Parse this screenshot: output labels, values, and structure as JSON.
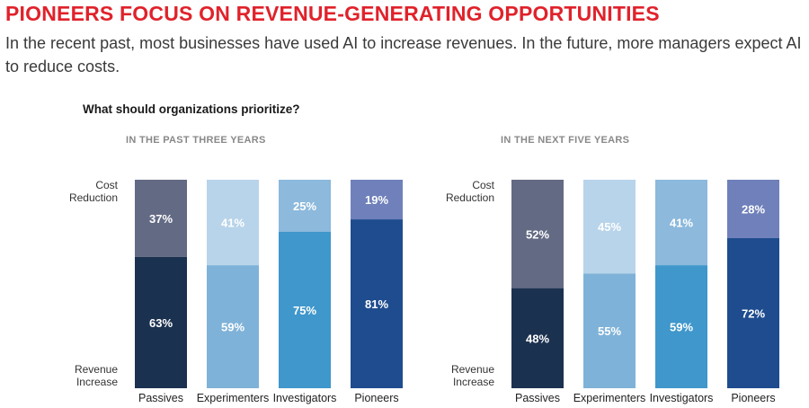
{
  "header": {
    "title": "PIONEERS FOCUS ON REVENUE-GENERATING OPPORTUNITIES",
    "subtitle": "In the recent past, most businesses have used AI to increase revenues. In the future, more managers expect AI to reduce costs."
  },
  "question": "What should organizations prioritize?",
  "colors": {
    "title_red": "#e0222b",
    "passives_increase": "#1b3150",
    "passives_reduction": "#636a84",
    "experimenters_increase": "#7fb2d8",
    "experimenters_reduction": "#b8d4ea",
    "investigators_increase": "#3f97cb",
    "investigators_reduction": "#8cb9dc",
    "pioneers_increase": "#1e4c8f",
    "pioneers_reduction": "#6f80ba"
  },
  "chart_data": [
    {
      "type": "bar",
      "stacked": true,
      "percent": true,
      "title": "IN THE PAST THREE YEARS",
      "categories": [
        "Passives",
        "Experimenters",
        "Investigators",
        "Pioneers"
      ],
      "y_axis_labels": {
        "top": [
          "Cost",
          "Reduction"
        ],
        "bottom": [
          "Revenue",
          "Increase"
        ]
      },
      "ylim": [
        0,
        100
      ],
      "series": [
        {
          "name": "Revenue Increase",
          "values": [
            63,
            59,
            75,
            81
          ],
          "labels": [
            "63%",
            "59%",
            "75%",
            "81%"
          ]
        },
        {
          "name": "Cost Reduction",
          "values": [
            37,
            41,
            25,
            19
          ],
          "labels": [
            "37%",
            "41%",
            "25%",
            "19%"
          ]
        }
      ]
    },
    {
      "type": "bar",
      "stacked": true,
      "percent": true,
      "title": "IN THE NEXT FIVE YEARS",
      "categories": [
        "Passives",
        "Experimenters",
        "Investigators",
        "Pioneers"
      ],
      "y_axis_labels": {
        "top": [
          "Cost",
          "Reduction"
        ],
        "bottom": [
          "Revenue",
          "Increase"
        ]
      },
      "ylim": [
        0,
        100
      ],
      "series": [
        {
          "name": "Revenue Increase",
          "values": [
            48,
            55,
            59,
            72
          ],
          "labels": [
            "48%",
            "55%",
            "59%",
            "72%"
          ]
        },
        {
          "name": "Cost Reduction",
          "values": [
            52,
            45,
            41,
            28
          ],
          "labels": [
            "52%",
            "45%",
            "41%",
            "28%"
          ]
        }
      ]
    }
  ]
}
